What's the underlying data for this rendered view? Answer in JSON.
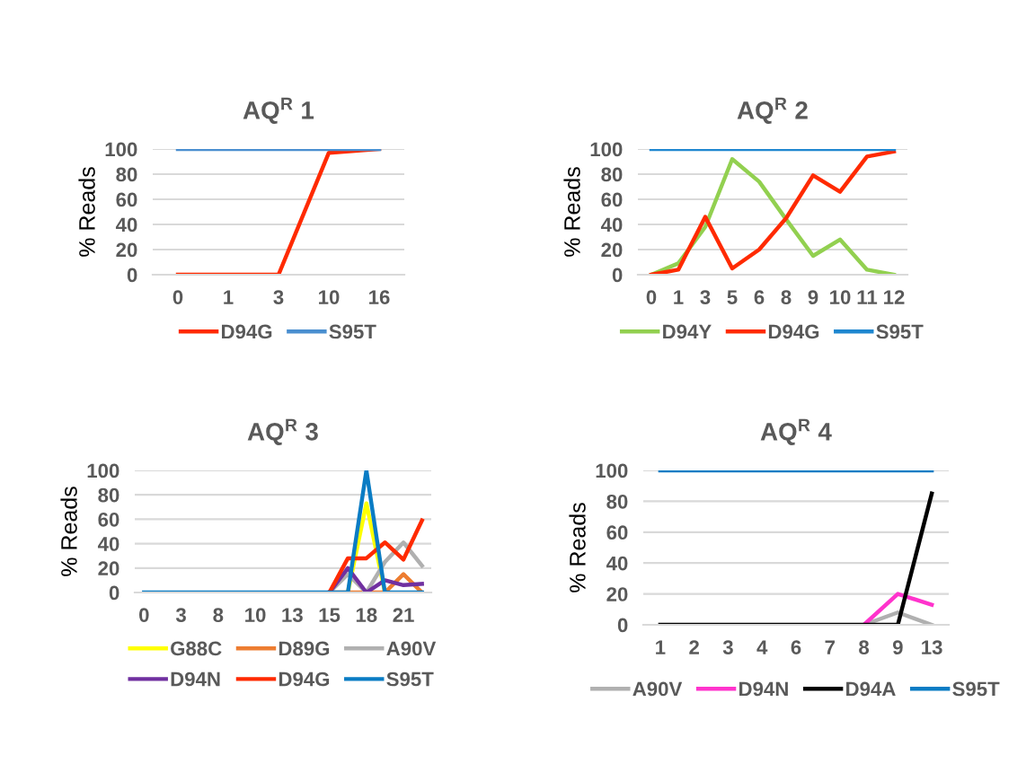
{
  "chart_data": [
    {
      "type": "line",
      "title": "AQ$^{R}$ 1",
      "ylabel": "% Reads",
      "categories": [
        "0",
        "1",
        "3",
        "10",
        "16"
      ],
      "ylim": [
        0,
        100
      ],
      "yticks": [
        0,
        20,
        40,
        60,
        80,
        100
      ],
      "grid": "y",
      "legend": "bottom",
      "marker": "none",
      "line_style": "solid",
      "series": [
        {
          "name": "D94G",
          "color": "#ff2a00",
          "values": [
            0,
            0,
            0,
            97,
            100
          ]
        },
        {
          "name": "S95T",
          "color": "#4a8fd0",
          "values": [
            100,
            100,
            100,
            100,
            100
          ]
        }
      ]
    },
    {
      "type": "line",
      "title": "AQ$^{R}$ 2",
      "ylabel": "% Reads",
      "categories": [
        "0",
        "1",
        "3",
        "5",
        "6",
        "8",
        "9",
        "10",
        "11",
        "12"
      ],
      "ylim": [
        0,
        100
      ],
      "yticks": [
        0,
        20,
        40,
        60,
        80,
        100
      ],
      "grid": "y",
      "legend": "bottom",
      "marker": "none",
      "line_style": "solid",
      "series": [
        {
          "name": "D94Y",
          "color": "#92d050",
          "values": [
            0,
            9,
            38,
            92,
            74,
            44,
            15,
            28,
            4,
            0
          ]
        },
        {
          "name": "D94G",
          "color": "#ff2a00",
          "values": [
            0,
            4,
            46,
            5,
            20,
            45,
            79,
            66,
            94,
            98
          ]
        },
        {
          "name": "S95T",
          "color": "#1f87d0",
          "values": [
            100,
            100,
            100,
            100,
            100,
            100,
            100,
            100,
            100,
            100
          ]
        }
      ]
    },
    {
      "type": "line",
      "title": "AQ$^{R}$ 3",
      "ylabel": "% Reads",
      "categories": [
        "0",
        null,
        "3",
        null,
        "8",
        null,
        "10",
        null,
        "13",
        null,
        "15",
        null,
        "18",
        null,
        "21",
        null
      ],
      "ylim": [
        0,
        100
      ],
      "yticks": [
        0,
        20,
        40,
        60,
        80,
        100
      ],
      "grid": "y",
      "legend": "bottom",
      "marker": "none",
      "line_style": "solid",
      "series": [
        {
          "name": "G88C",
          "color": "#ffff00",
          "values": [
            null,
            null,
            null,
            null,
            null,
            null,
            null,
            null,
            null,
            null,
            null,
            0,
            73,
            0,
            null,
            null
          ]
        },
        {
          "name": "D89G",
          "color": "#ed7d31",
          "values": [
            null,
            null,
            null,
            null,
            null,
            null,
            null,
            null,
            null,
            null,
            0,
            0,
            0,
            0,
            15,
            0
          ]
        },
        {
          "name": "A90V",
          "color": "#b0b0b0",
          "values": [
            null,
            null,
            null,
            null,
            null,
            null,
            null,
            null,
            null,
            null,
            0,
            15,
            0,
            25,
            41,
            22
          ]
        },
        {
          "name": "D94N",
          "color": "#7030a0",
          "values": [
            null,
            null,
            null,
            null,
            null,
            null,
            null,
            null,
            null,
            null,
            0,
            20,
            0,
            10,
            6,
            7
          ]
        },
        {
          "name": "D94G",
          "color": "#ff2a00",
          "values": [
            null,
            null,
            null,
            null,
            null,
            null,
            null,
            null,
            null,
            null,
            0,
            28,
            28,
            41,
            27,
            59
          ]
        },
        {
          "name": "S95T",
          "color": "#0a7cc4",
          "values": [
            0,
            0,
            0,
            0,
            0,
            0,
            0,
            0,
            0,
            0,
            0,
            0,
            100,
            0,
            0,
            0
          ]
        }
      ]
    },
    {
      "type": "line",
      "title": "AQ$^{R}$ 4",
      "ylabel": "% Reads",
      "categories": [
        "1",
        "2",
        "3",
        "4",
        "6",
        "7",
        "8",
        "9",
        "13"
      ],
      "ylim": [
        0,
        100
      ],
      "yticks": [
        0,
        20,
        40,
        60,
        80,
        100
      ],
      "grid": "y",
      "legend": "bottom",
      "marker": "none",
      "line_style": "solid",
      "series": [
        {
          "name": "A90V",
          "color": "#b0b0b0",
          "values": [
            null,
            null,
            null,
            null,
            null,
            null,
            0,
            8,
            0
          ]
        },
        {
          "name": "D94N",
          "color": "#ff33cc",
          "values": [
            null,
            null,
            null,
            null,
            null,
            null,
            0,
            20,
            13
          ]
        },
        {
          "name": "D94A",
          "color": "#000000",
          "values": [
            0,
            0,
            0,
            0,
            0,
            0,
            0,
            0,
            85
          ]
        },
        {
          "name": "S95T",
          "color": "#0a7cc4",
          "values": [
            100,
            100,
            100,
            100,
            100,
            100,
            100,
            100,
            100
          ]
        }
      ]
    }
  ]
}
